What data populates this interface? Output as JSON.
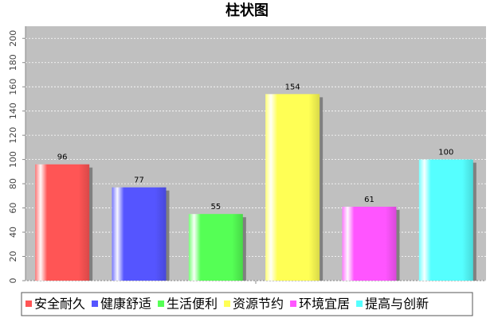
{
  "chart_data": {
    "type": "bar",
    "title": "柱状图",
    "categories": [
      null
    ],
    "series": [
      {
        "name": "安全耐久",
        "color": "#ff5555",
        "values": [
          96
        ]
      },
      {
        "name": "健康舒适",
        "color": "#5555ff",
        "values": [
          77
        ]
      },
      {
        "name": "生活便利",
        "color": "#55ff55",
        "values": [
          55
        ]
      },
      {
        "name": "资源节约",
        "color": "#ffff55",
        "values": [
          154
        ]
      },
      {
        "name": "环境宜居",
        "color": "#ff55ff",
        "values": [
          61
        ]
      },
      {
        "name": "提高与创新",
        "color": "#55ffff",
        "values": [
          100
        ]
      }
    ],
    "ylim": [
      0,
      210
    ],
    "yticks": [
      0,
      20,
      40,
      60,
      80,
      100,
      120,
      140,
      160,
      180,
      200
    ],
    "grid": true,
    "legend": "bottom"
  }
}
